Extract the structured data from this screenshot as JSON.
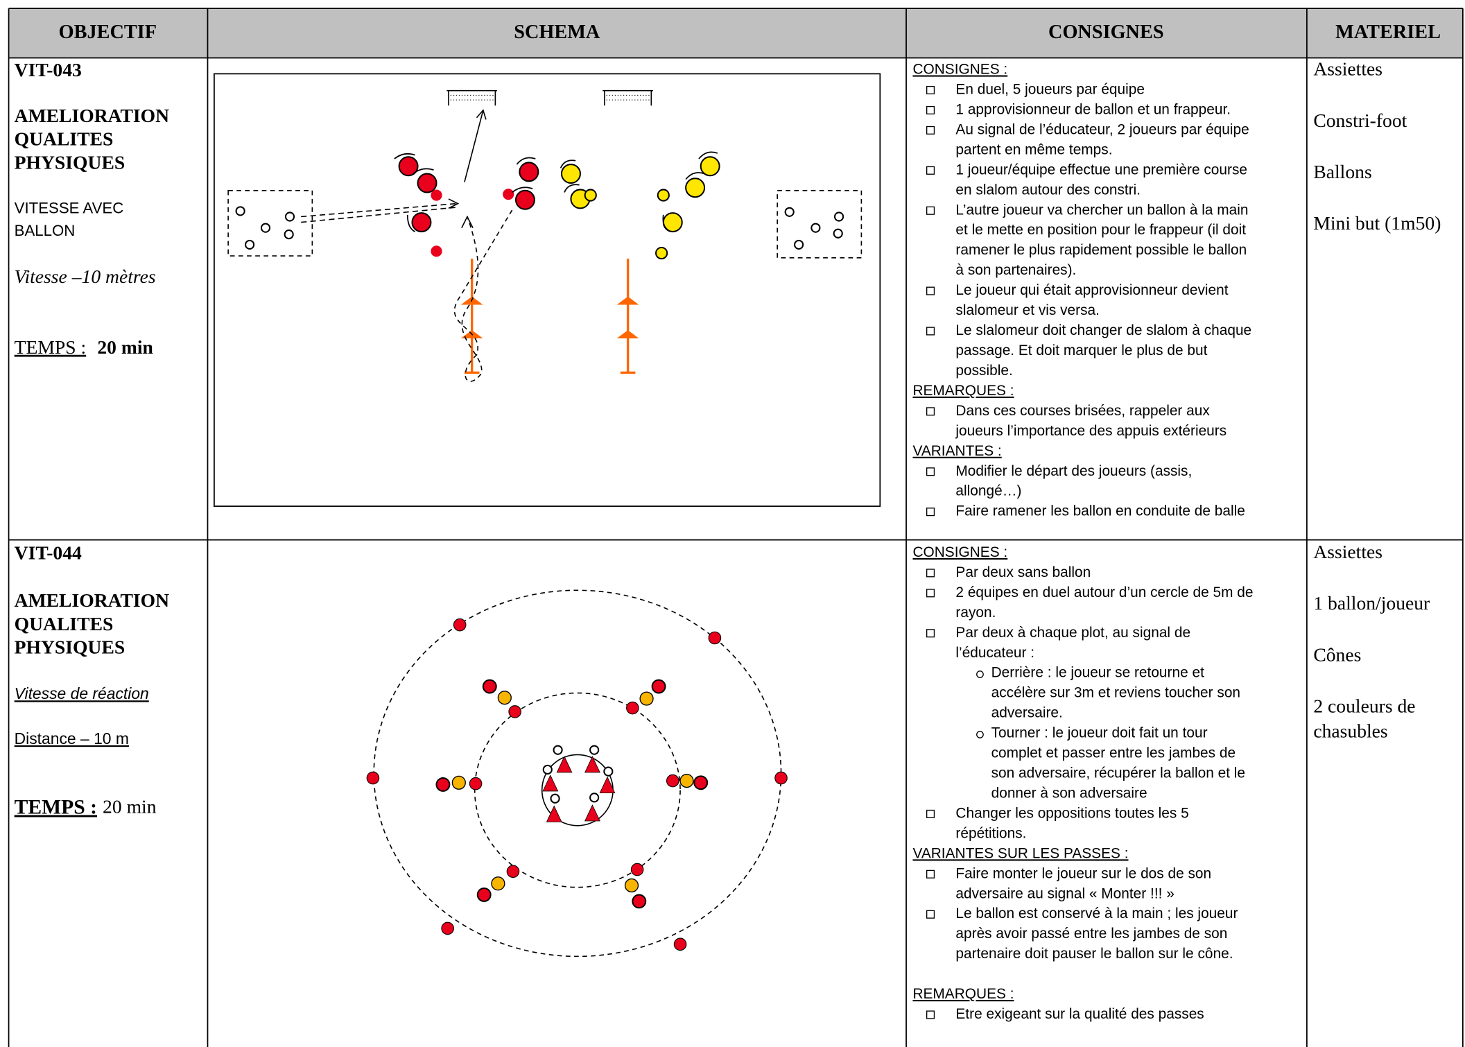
{
  "header": {
    "objectif": "OBJECTIF",
    "schema": "SCHEMA",
    "consignes": "CONSIGNES",
    "materiel": "MATERIEL"
  },
  "rows": [
    {
      "code": "VIT-043",
      "theme": [
        "AMELIORATION",
        "QUALITES",
        "PHYSIQUES"
      ],
      "focus": [
        "VITESSE AVEC",
        "BALLON"
      ],
      "detail": "Vitesse –10 mètres",
      "time_label": "TEMPS :",
      "time_value": "20 min",
      "consignes": [
        {
          "title": "CONSIGNES :",
          "items": [
            {
              "lines": [
                "En duel, 5 joueurs par équipe"
              ]
            },
            {
              "lines": [
                "1 approvisionneur de ballon et un frappeur."
              ]
            },
            {
              "lines": [
                "Au signal de l’éducateur, 2 joueurs par équipe",
                "partent en même temps."
              ]
            },
            {
              "lines": [
                "1 joueur/équipe effectue une première course",
                "en slalom autour des constri."
              ]
            },
            {
              "lines": [
                "L’autre joueur va chercher un ballon à la main",
                "et le mette en position pour le frappeur (il doit",
                "ramener le plus rapidement possible le ballon",
                "à son partenaires)."
              ]
            },
            {
              "lines": [
                "Le joueur qui était approvisionneur devient",
                "slalomeur et vis versa."
              ]
            },
            {
              "lines": [
                "Le slalomeur doit changer de slalom à chaque",
                "passage. Et doit marquer le plus de but",
                "possible."
              ]
            }
          ]
        },
        {
          "title": "REMARQUES :",
          "items": [
            {
              "lines": [
                "Dans ces courses brisées, rappeler aux",
                "joueurs l’importance des appuis extérieurs"
              ]
            }
          ]
        },
        {
          "title": "VARIANTES :",
          "items": [
            {
              "lines": [
                "Modifier le départ des joueurs (assis,",
                "allongé…)"
              ]
            },
            {
              "lines": [
                "Faire ramener les ballon en conduite de balle"
              ]
            }
          ]
        }
      ],
      "materiel": [
        "Assiettes",
        "Constri-foot",
        "Ballons",
        "Mini but (1m50)"
      ]
    },
    {
      "code": "VIT-044",
      "theme": [
        "AMELIORATION",
        "QUALITES",
        "PHYSIQUES"
      ],
      "focus": [
        "Vitesse de réaction"
      ],
      "detail": "Distance – 10 m",
      "time_label": "TEMPS :",
      "time_value": "20 min",
      "consignes": [
        {
          "title": "CONSIGNES :",
          "items": [
            {
              "lines": [
                "Par deux sans ballon"
              ]
            },
            {
              "lines": [
                "2 équipes en duel autour d’un cercle de 5m de",
                "rayon."
              ]
            },
            {
              "lines": [
                "Par deux à chaque plot, au signal de",
                "l’éducateur :"
              ],
              "sub": [
                {
                  "lines": [
                    "Derrière : le joueur se retourne et",
                    "accélère sur 3m et reviens toucher son",
                    "adversaire."
                  ]
                },
                {
                  "lines": [
                    "Tourner : le joueur doit fait un tour",
                    "complet et passer entre les jambes de",
                    "son adversaire, récupérer la ballon et le",
                    "donner à son adversaire"
                  ]
                }
              ]
            },
            {
              "lines": [
                "Changer les oppositions toutes les 5",
                "répétitions."
              ]
            }
          ]
        },
        {
          "title": "VARIANTES SUR LES PASSES :",
          "items": [
            {
              "lines": [
                "Faire monter le joueur sur le dos de son",
                "adversaire au signal « Monter !!! »"
              ]
            },
            {
              "lines": [
                "Le ballon est conservé à la main ; les joueur",
                "après avoir passé entre les jambes de son",
                "partenaire doit pauser le ballon sur le cône."
              ]
            }
          ]
        },
        {
          "title": "REMARQUES :",
          "items": [
            {
              "lines": [
                "Etre exigeant sur la qualité des passes"
              ]
            }
          ]
        }
      ],
      "materiel": [
        "Assiettes",
        "1 ballon/joueur",
        "Cônes",
        "2 couleurs de",
        "chasubles"
      ]
    }
  ]
}
